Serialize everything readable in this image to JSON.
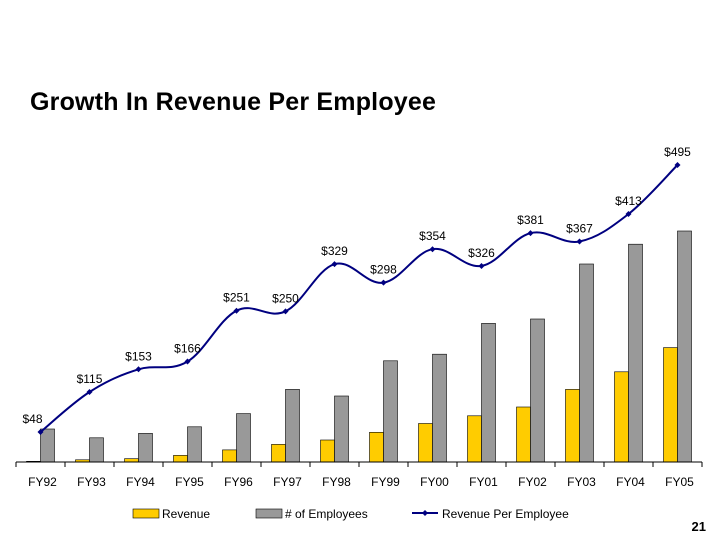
{
  "slide": {
    "title": "Growth In Revenue Per Employee",
    "page_number": "21"
  },
  "colors": {
    "revenue": "#FFCC00",
    "employees": "#999999",
    "line": "#000080",
    "axis": "#000000",
    "text": "#000000"
  },
  "chart_data": {
    "type": "bar",
    "title": "",
    "xlabel": "",
    "ylabel": "",
    "categories": [
      "FY92",
      "FY93",
      "FY94",
      "FY95",
      "FY96",
      "FY97",
      "FY98",
      "FY99",
      "FY00",
      "FY01",
      "FY02",
      "FY03",
      "FY04",
      "FY05"
    ],
    "bar_ylim": [
      0,
      100
    ],
    "line_ylim": [
      0,
      560
    ],
    "grid": false,
    "legend_position": "bottom",
    "series": [
      {
        "name": "Revenue",
        "type": "bar",
        "values": [
          0.3,
          1,
          1.5,
          3,
          5.5,
          8,
          10,
          13.5,
          17.5,
          21,
          25,
          33,
          41,
          52
        ]
      },
      {
        "name": "# of Employees",
        "type": "bar",
        "values": [
          15,
          11,
          13,
          16,
          22,
          33,
          30,
          46,
          49,
          63,
          65,
          90,
          99,
          105
        ]
      },
      {
        "name": "Revenue Per Employee",
        "type": "line",
        "values": [
          48,
          115,
          153,
          166,
          251,
          250,
          329,
          298,
          354,
          326,
          381,
          367,
          413,
          495
        ],
        "labels": [
          "$48",
          "$115",
          "$153",
          "$166",
          "$251",
          "$250",
          "$329",
          "$298",
          "$354",
          "$326",
          "$381",
          "$367",
          "$413",
          "$495"
        ]
      }
    ]
  }
}
